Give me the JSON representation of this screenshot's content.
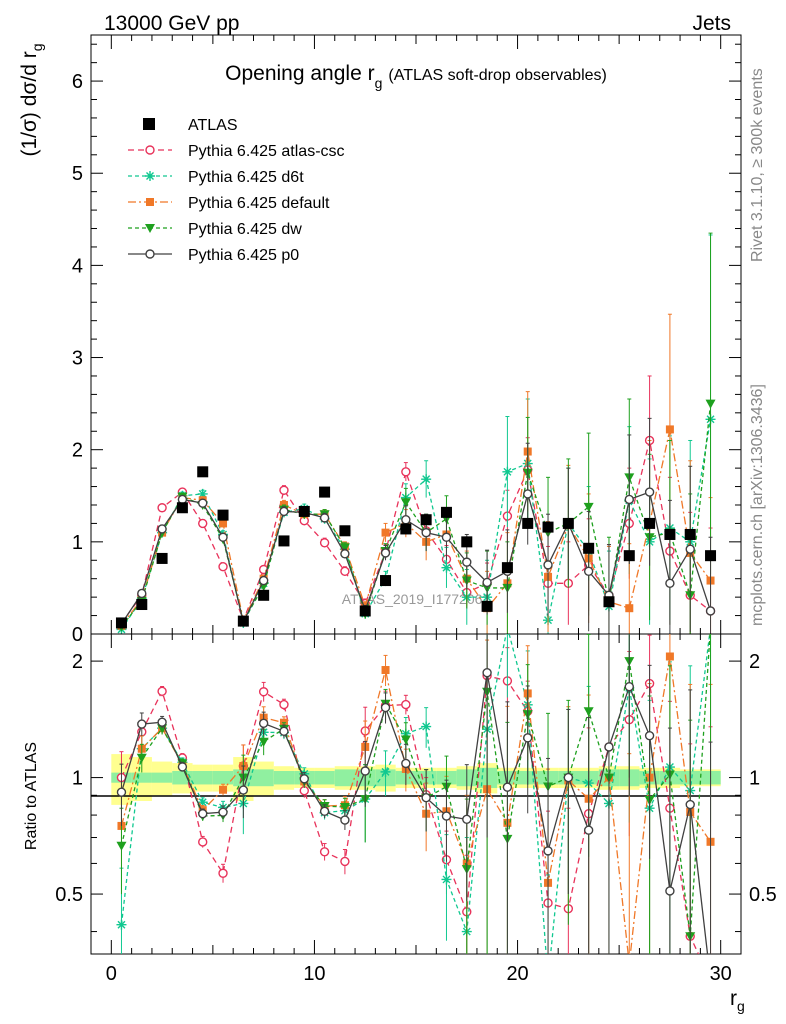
{
  "header": {
    "energy": "13000 GeV pp",
    "process": "Jets"
  },
  "side_text": {
    "rivet": "Rivet 3.1.10, ≥ 300k events",
    "site": "mcplots.cern.ch [arXiv:1306.3436]"
  },
  "watermark": "ATLAS_2019_I1772062",
  "chart_data": {
    "type": "scatter",
    "title_main": "Opening angle r",
    "title_sub": "g",
    "title_suffix": "(ATLAS soft-drop observables)",
    "xlabel": "r",
    "xlabel_sub": "g",
    "ylabel": "(1/σ) dσ/d r",
    "ylabel_sub": "g",
    "ratio_ylabel": "Ratio to ATLAS",
    "xlim": [
      -1,
      31
    ],
    "ylim": [
      0,
      6.5
    ],
    "ratio_ylim": [
      0.35,
      2.35
    ],
    "xticks": [
      0,
      10,
      20,
      30
    ],
    "yticks": [
      0,
      1,
      2,
      3,
      4,
      5,
      6
    ],
    "ratio_yticks": [
      0.5,
      1,
      2
    ],
    "x": [
      0.5,
      1.5,
      2.5,
      3.5,
      4.5,
      5.5,
      6.5,
      7.5,
      8.5,
      9.5,
      10.5,
      11.5,
      12.5,
      13.5,
      14.5,
      15.5,
      16.5,
      17.5,
      18.5,
      19.5,
      20.5,
      21.5,
      22.5,
      23.5,
      24.5,
      25.5,
      26.5,
      27.5,
      28.5,
      29.5
    ],
    "data_series": {
      "name": "ATLAS",
      "values": [
        0.12,
        0.32,
        0.82,
        1.37,
        1.76,
        1.29,
        0.14,
        0.42,
        1.01,
        1.33,
        1.54,
        1.12,
        0.25,
        0.58,
        1.14,
        1.24,
        1.32,
        1.0,
        0.3,
        0.72,
        1.2,
        1.16,
        1.2,
        0.93,
        0.35,
        0.85,
        1.2,
        1.08,
        1.08,
        0.85
      ]
    },
    "series": [
      {
        "name": "Pythia 6.425 atlas-csc",
        "color": "#e8325a",
        "marker": "open-circle",
        "dash": "6,4",
        "values": [
          0.12,
          0.42,
          1.37,
          1.54,
          1.2,
          0.73,
          0.15,
          0.7,
          1.56,
          1.23,
          0.99,
          0.68,
          0.33,
          0.89,
          1.76,
          1.12,
          0.81,
          0.45,
          0.55,
          1.28,
          1.78,
          0.55,
          0.55,
          0.75,
          0.42,
          1.2,
          2.1,
          0.9,
          0.42,
          0.25
        ],
        "errors": [
          0.02,
          0.03,
          0.04,
          0.04,
          0.04,
          0.04,
          0.02,
          0.04,
          0.05,
          0.05,
          0.05,
          0.05,
          0.05,
          0.08,
          0.1,
          0.12,
          0.15,
          0.18,
          0.22,
          0.28,
          0.35,
          0.4,
          0.45,
          0.5,
          0.55,
          0.6,
          0.7,
          0.8,
          0.9,
          0.9
        ]
      },
      {
        "name": "Pythia 6.425 d6t",
        "color": "#10c890",
        "marker": "star",
        "dash": "4,3",
        "values": [
          0.05,
          0.38,
          1.1,
          1.5,
          1.52,
          1.08,
          0.12,
          0.55,
          1.32,
          1.36,
          1.25,
          0.92,
          0.22,
          0.6,
          1.48,
          1.68,
          0.72,
          0.4,
          0.4,
          1.76,
          1.85,
          0.15,
          1.2,
          0.9,
          0.3,
          1.45,
          1.0,
          1.15,
          1.0,
          2.33
        ],
        "errors": [
          0.02,
          0.03,
          0.04,
          0.04,
          0.04,
          0.04,
          0.02,
          0.04,
          0.05,
          0.05,
          0.05,
          0.05,
          0.05,
          0.08,
          0.15,
          0.2,
          0.22,
          0.3,
          0.4,
          0.6,
          0.7,
          0.5,
          0.6,
          0.7,
          0.6,
          0.8,
          0.9,
          1.0,
          1.1,
          2.0
        ]
      },
      {
        "name": "Pythia 6.425 default",
        "color": "#f07828",
        "marker": "square",
        "dash": "8,3,2,3",
        "values": [
          0.09,
          0.38,
          1.1,
          1.48,
          1.45,
          1.2,
          0.15,
          0.6,
          1.4,
          1.3,
          1.3,
          0.95,
          0.3,
          1.1,
          1.2,
          1.0,
          1.08,
          0.6,
          0.28,
          0.55,
          1.98,
          0.62,
          1.18,
          0.82,
          0.35,
          0.28,
          1.2,
          2.22,
          0.88,
          0.58
        ],
        "errors": [
          0.02,
          0.03,
          0.04,
          0.04,
          0.04,
          0.04,
          0.02,
          0.04,
          0.05,
          0.05,
          0.05,
          0.05,
          0.05,
          0.1,
          0.15,
          0.2,
          0.25,
          0.3,
          0.4,
          0.55,
          0.65,
          0.6,
          0.65,
          0.7,
          0.6,
          0.7,
          0.9,
          1.25,
          1.0,
          0.9
        ]
      },
      {
        "name": "Pythia 6.425 dw",
        "color": "#1ea01e",
        "marker": "triangle-down",
        "dash": "4,3",
        "values": [
          0.08,
          0.36,
          1.1,
          1.49,
          1.4,
          1.03,
          0.14,
          0.52,
          1.35,
          1.3,
          1.3,
          0.94,
          0.22,
          0.9,
          1.43,
          1.1,
          1.25,
          0.58,
          0.5,
          0.5,
          1.75,
          1.1,
          1.2,
          1.38,
          0.35,
          1.7,
          1.05,
          1.1,
          0.42,
          2.5
        ],
        "errors": [
          0.02,
          0.03,
          0.04,
          0.04,
          0.04,
          0.04,
          0.02,
          0.04,
          0.05,
          0.05,
          0.05,
          0.05,
          0.05,
          0.08,
          0.15,
          0.2,
          0.25,
          0.3,
          0.4,
          0.5,
          0.6,
          0.6,
          0.7,
          0.8,
          0.7,
          0.85,
          0.9,
          1.0,
          1.1,
          1.85
        ]
      },
      {
        "name": "Pythia 6.425 p0",
        "color": "#404040",
        "marker": "open-circle",
        "dash": "",
        "values": [
          0.11,
          0.44,
          1.14,
          1.46,
          1.42,
          1.05,
          0.13,
          0.58,
          1.33,
          1.32,
          1.26,
          0.87,
          0.26,
          0.88,
          1.24,
          1.1,
          1.05,
          0.78,
          0.56,
          0.68,
          1.52,
          0.75,
          1.2,
          0.68,
          0.42,
          1.46,
          1.54,
          0.55,
          0.92,
          0.25
        ],
        "errors": [
          0.02,
          0.03,
          0.04,
          0.04,
          0.04,
          0.04,
          0.02,
          0.04,
          0.05,
          0.05,
          0.05,
          0.05,
          0.05,
          0.08,
          0.15,
          0.2,
          0.25,
          0.3,
          0.35,
          0.45,
          0.55,
          0.55,
          0.6,
          0.65,
          0.55,
          0.7,
          0.8,
          0.9,
          0.9,
          0.8
        ]
      }
    ],
    "ratio": {
      "atlas_band_inner": [
        0.03,
        0.03,
        0.03,
        0.04,
        0.04,
        0.04,
        0.05,
        0.05,
        0.04,
        0.04,
        0.04,
        0.05,
        0.05,
        0.05,
        0.04,
        0.04,
        0.04,
        0.05,
        0.06,
        0.04,
        0.04,
        0.04,
        0.04,
        0.04,
        0.05,
        0.05,
        0.04,
        0.04,
        0.04,
        0.04
      ],
      "atlas_band_outer": [
        0.15,
        0.13,
        0.1,
        0.09,
        0.08,
        0.08,
        0.13,
        0.1,
        0.07,
        0.06,
        0.06,
        0.07,
        0.07,
        0.08,
        0.06,
        0.06,
        0.06,
        0.07,
        0.09,
        0.06,
        0.06,
        0.06,
        0.06,
        0.06,
        0.07,
        0.07,
        0.06,
        0.06,
        0.05,
        0.05
      ]
    },
    "legend_position": "top-left"
  }
}
